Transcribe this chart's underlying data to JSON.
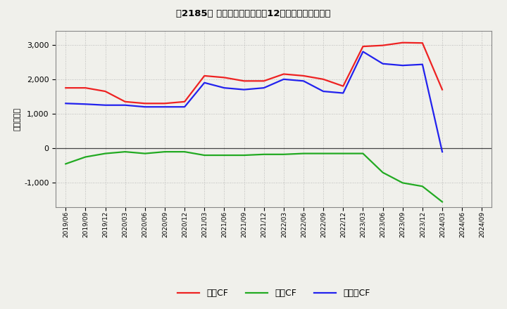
{
  "title": "［2185］ キャッシュフローの12か月移動合計の推移",
  "ylabel": "（百万円）",
  "dates": [
    "2019/06",
    "2019/09",
    "2019/12",
    "2020/03",
    "2020/06",
    "2020/09",
    "2020/12",
    "2021/03",
    "2021/06",
    "2021/09",
    "2021/12",
    "2022/03",
    "2022/06",
    "2022/09",
    "2022/12",
    "2023/03",
    "2023/06",
    "2023/09",
    "2023/12",
    "2024/03",
    "2024/06",
    "2024/09"
  ],
  "operating_cf": [
    1750,
    1750,
    1650,
    1350,
    1300,
    1300,
    1350,
    2100,
    2050,
    1950,
    1950,
    2150,
    2100,
    2000,
    1800,
    2950,
    2980,
    3060,
    3050,
    1700,
    null,
    null
  ],
  "investing_cf": [
    -450,
    -250,
    -150,
    -100,
    -150,
    -100,
    -100,
    -200,
    -200,
    -200,
    -175,
    -175,
    -150,
    -150,
    -150,
    -150,
    -700,
    -1000,
    -1100,
    -1550,
    null,
    null
  ],
  "free_cf": [
    1300,
    1280,
    1250,
    1250,
    1200,
    1200,
    1200,
    1900,
    1750,
    1700,
    1750,
    2000,
    1950,
    1650,
    1600,
    2800,
    2450,
    2400,
    2430,
    -100,
    null,
    null
  ],
  "legend_labels": [
    "営業CF",
    "投資CF",
    "フリーCF"
  ],
  "operating_color": "#ee2222",
  "investing_color": "#22aa22",
  "free_color": "#2222ee",
  "ylim": [
    -1700,
    3400
  ],
  "yticks": [
    -1000,
    0,
    1000,
    2000,
    3000
  ],
  "background_color": "#f0f0eb",
  "grid_color": "#aaaaaa",
  "line_width": 1.6
}
